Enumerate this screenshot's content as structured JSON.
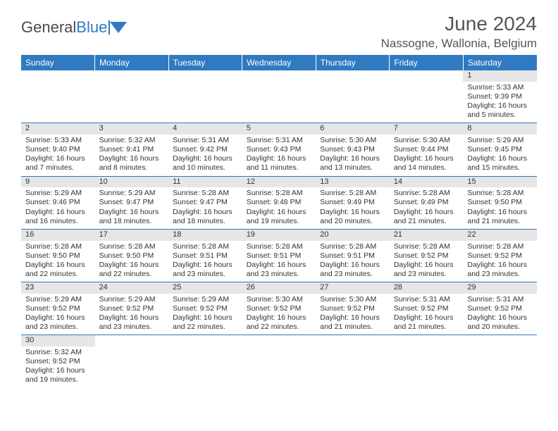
{
  "logo": {
    "text1": "General",
    "text2": "Blue"
  },
  "title": "June 2024",
  "location": "Nassogne, Wallonia, Belgium",
  "colors": {
    "header_bg": "#2f7ac0",
    "header_text": "#ffffff",
    "daynum_bg": "#e6e6e6",
    "row_border": "#2f7ac0",
    "body_text": "#333333",
    "title_text": "#555555"
  },
  "fonts": {
    "title_size_pt": 21,
    "location_size_pt": 13,
    "header_size_pt": 9,
    "cell_size_pt": 8,
    "family": "Arial"
  },
  "layout": {
    "grid_cols": 7,
    "grid_rows": 6,
    "first_weekday_index": 6
  },
  "weekdays": [
    "Sunday",
    "Monday",
    "Tuesday",
    "Wednesday",
    "Thursday",
    "Friday",
    "Saturday"
  ],
  "days": [
    {
      "n": 1,
      "sunrise": "5:33 AM",
      "sunset": "9:39 PM",
      "daylight": "16 hours and 5 minutes."
    },
    {
      "n": 2,
      "sunrise": "5:33 AM",
      "sunset": "9:40 PM",
      "daylight": "16 hours and 7 minutes."
    },
    {
      "n": 3,
      "sunrise": "5:32 AM",
      "sunset": "9:41 PM",
      "daylight": "16 hours and 8 minutes."
    },
    {
      "n": 4,
      "sunrise": "5:31 AM",
      "sunset": "9:42 PM",
      "daylight": "16 hours and 10 minutes."
    },
    {
      "n": 5,
      "sunrise": "5:31 AM",
      "sunset": "9:43 PM",
      "daylight": "16 hours and 11 minutes."
    },
    {
      "n": 6,
      "sunrise": "5:30 AM",
      "sunset": "9:43 PM",
      "daylight": "16 hours and 13 minutes."
    },
    {
      "n": 7,
      "sunrise": "5:30 AM",
      "sunset": "9:44 PM",
      "daylight": "16 hours and 14 minutes."
    },
    {
      "n": 8,
      "sunrise": "5:29 AM",
      "sunset": "9:45 PM",
      "daylight": "16 hours and 15 minutes."
    },
    {
      "n": 9,
      "sunrise": "5:29 AM",
      "sunset": "9:46 PM",
      "daylight": "16 hours and 16 minutes."
    },
    {
      "n": 10,
      "sunrise": "5:29 AM",
      "sunset": "9:47 PM",
      "daylight": "16 hours and 18 minutes."
    },
    {
      "n": 11,
      "sunrise": "5:28 AM",
      "sunset": "9:47 PM",
      "daylight": "16 hours and 18 minutes."
    },
    {
      "n": 12,
      "sunrise": "5:28 AM",
      "sunset": "9:48 PM",
      "daylight": "16 hours and 19 minutes."
    },
    {
      "n": 13,
      "sunrise": "5:28 AM",
      "sunset": "9:49 PM",
      "daylight": "16 hours and 20 minutes."
    },
    {
      "n": 14,
      "sunrise": "5:28 AM",
      "sunset": "9:49 PM",
      "daylight": "16 hours and 21 minutes."
    },
    {
      "n": 15,
      "sunrise": "5:28 AM",
      "sunset": "9:50 PM",
      "daylight": "16 hours and 21 minutes."
    },
    {
      "n": 16,
      "sunrise": "5:28 AM",
      "sunset": "9:50 PM",
      "daylight": "16 hours and 22 minutes."
    },
    {
      "n": 17,
      "sunrise": "5:28 AM",
      "sunset": "9:50 PM",
      "daylight": "16 hours and 22 minutes."
    },
    {
      "n": 18,
      "sunrise": "5:28 AM",
      "sunset": "9:51 PM",
      "daylight": "16 hours and 23 minutes."
    },
    {
      "n": 19,
      "sunrise": "5:28 AM",
      "sunset": "9:51 PM",
      "daylight": "16 hours and 23 minutes."
    },
    {
      "n": 20,
      "sunrise": "5:28 AM",
      "sunset": "9:51 PM",
      "daylight": "16 hours and 23 minutes."
    },
    {
      "n": 21,
      "sunrise": "5:28 AM",
      "sunset": "9:52 PM",
      "daylight": "16 hours and 23 minutes."
    },
    {
      "n": 22,
      "sunrise": "5:28 AM",
      "sunset": "9:52 PM",
      "daylight": "16 hours and 23 minutes."
    },
    {
      "n": 23,
      "sunrise": "5:29 AM",
      "sunset": "9:52 PM",
      "daylight": "16 hours and 23 minutes."
    },
    {
      "n": 24,
      "sunrise": "5:29 AM",
      "sunset": "9:52 PM",
      "daylight": "16 hours and 23 minutes."
    },
    {
      "n": 25,
      "sunrise": "5:29 AM",
      "sunset": "9:52 PM",
      "daylight": "16 hours and 22 minutes."
    },
    {
      "n": 26,
      "sunrise": "5:30 AM",
      "sunset": "9:52 PM",
      "daylight": "16 hours and 22 minutes."
    },
    {
      "n": 27,
      "sunrise": "5:30 AM",
      "sunset": "9:52 PM",
      "daylight": "16 hours and 21 minutes."
    },
    {
      "n": 28,
      "sunrise": "5:31 AM",
      "sunset": "9:52 PM",
      "daylight": "16 hours and 21 minutes."
    },
    {
      "n": 29,
      "sunrise": "5:31 AM",
      "sunset": "9:52 PM",
      "daylight": "16 hours and 20 minutes."
    },
    {
      "n": 30,
      "sunrise": "5:32 AM",
      "sunset": "9:52 PM",
      "daylight": "16 hours and 19 minutes."
    }
  ],
  "labels": {
    "sunrise": "Sunrise:",
    "sunset": "Sunset:",
    "daylight": "Daylight:"
  }
}
